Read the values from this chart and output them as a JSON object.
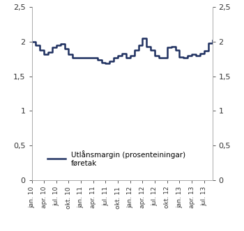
{
  "legend_line1": "Utlånsmargin (prosenteiningar)",
  "legend_line2": "føretak",
  "line_color": "#1f3060",
  "line_width": 1.8,
  "ylim": [
    0,
    2.5
  ],
  "yticks": [
    0,
    0.5,
    1,
    1.5,
    2,
    2.5
  ],
  "ytick_labels": [
    "0",
    "0,5",
    "1",
    "1,5",
    "2",
    "2,5"
  ],
  "background_color": "#ffffff",
  "x_labels": [
    "jan. 10",
    "apr. 10",
    "jul. 10",
    "okt. 10",
    "jan. 11",
    "apr. 11",
    "jul. 11",
    "okt. 11",
    "jan. 12",
    "apr. 12",
    "jul. 12",
    "okt. 12",
    "jan. 13",
    "apr. 13",
    "jul. 13"
  ],
  "x_label_indices": [
    0,
    3,
    6,
    9,
    12,
    15,
    18,
    21,
    24,
    27,
    30,
    33,
    36,
    39,
    42
  ],
  "values": [
    2.0,
    1.95,
    1.88,
    1.82,
    1.85,
    1.92,
    1.95,
    1.97,
    1.9,
    1.82,
    1.77,
    1.77,
    1.77,
    1.77,
    1.77,
    1.77,
    1.74,
    1.7,
    1.69,
    1.72,
    1.77,
    1.8,
    1.83,
    1.77,
    1.8,
    1.88,
    1.95,
    2.05,
    1.93,
    1.88,
    1.8,
    1.77,
    1.77,
    1.92,
    1.93,
    1.88,
    1.78,
    1.77,
    1.8,
    1.82,
    1.8,
    1.83,
    1.87,
    1.98,
    2.02
  ]
}
